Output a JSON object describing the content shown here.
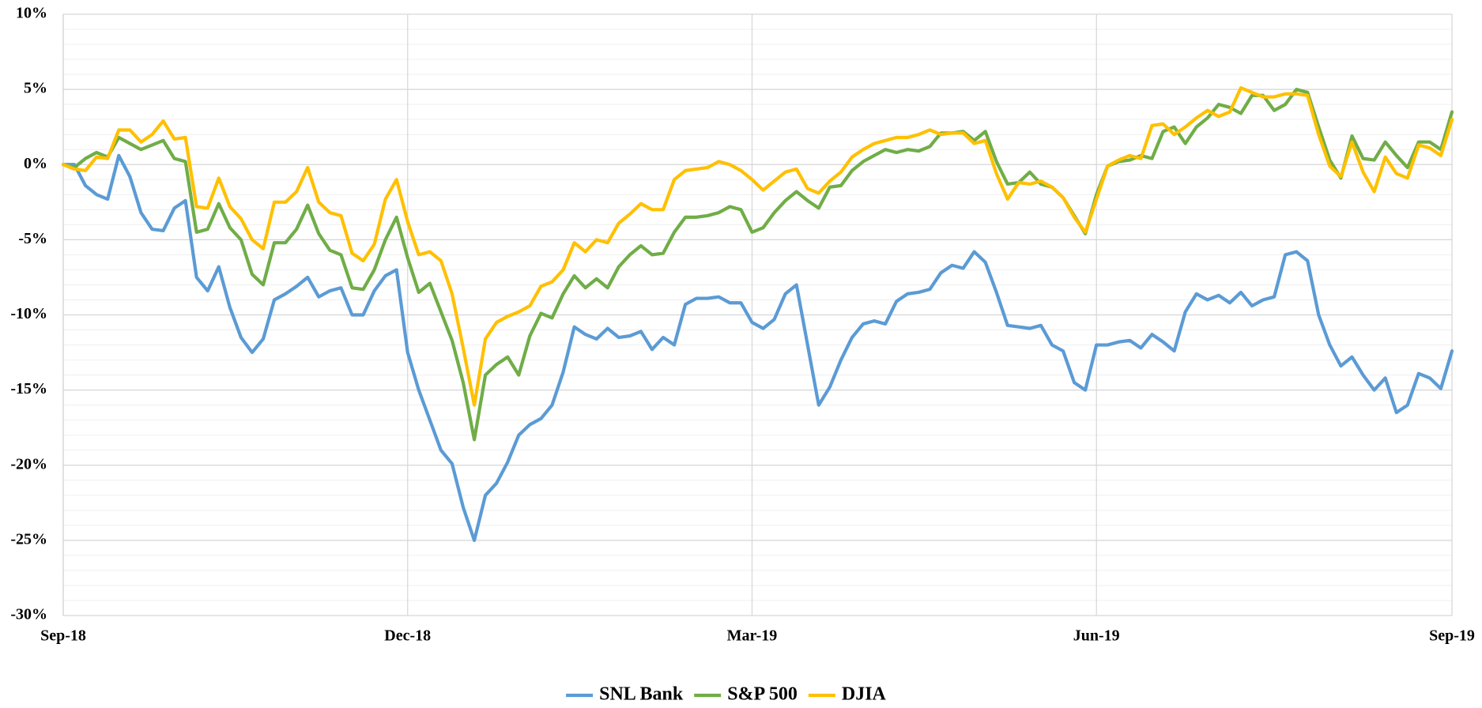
{
  "chart_data": {
    "type": "line",
    "categories": [
      "Sep-18",
      null,
      null,
      null,
      null,
      null,
      null,
      null,
      null,
      null,
      null,
      null,
      null,
      null,
      null,
      null,
      null,
      null,
      null,
      null,
      null,
      null,
      null,
      null,
      null,
      null,
      null,
      null,
      null,
      null,
      null,
      "Dec-18",
      null,
      null,
      null,
      null,
      null,
      null,
      null,
      null,
      null,
      null,
      null,
      null,
      null,
      null,
      null,
      null,
      null,
      null,
      null,
      null,
      null,
      null,
      null,
      null,
      null,
      null,
      null,
      null,
      null,
      null,
      "Mar-19",
      null,
      null,
      null,
      null,
      null,
      null,
      null,
      null,
      null,
      null,
      null,
      null,
      null,
      null,
      null,
      null,
      null,
      null,
      null,
      null,
      null,
      null,
      null,
      null,
      null,
      null,
      null,
      null,
      null,
      null,
      "Jun-19",
      null,
      null,
      null,
      null,
      null,
      null,
      null,
      null,
      null,
      null,
      null,
      null,
      null,
      null,
      null,
      null,
      null,
      null,
      null,
      null,
      null,
      null,
      null,
      null,
      null,
      null,
      null,
      null,
      null,
      null,
      null,
      "Sep-19"
    ],
    "series": [
      {
        "name": "SNL Bank",
        "color": "#5b9bd5",
        "values": [
          0,
          0,
          -1.4,
          -2.0,
          -2.3,
          0.6,
          -0.8,
          -3.2,
          -4.3,
          -4.4,
          -2.9,
          -2.4,
          -7.5,
          -8.4,
          -6.8,
          -9.5,
          -11.5,
          -12.5,
          -11.6,
          -9,
          -8.6,
          -8.1,
          -7.5,
          -8.8,
          -8.4,
          -8.2,
          -10,
          -10,
          -8.4,
          -7.4,
          -7,
          -12.5,
          -15,
          -17,
          -19,
          -19.9,
          -22.8,
          -25,
          -22,
          -21.2,
          -19.8,
          -18,
          -17.3,
          -16.9,
          -16,
          -13.8,
          -10.8,
          -11.3,
          -11.6,
          -10.9,
          -11.5,
          -11.4,
          -11.1,
          -12.3,
          -11.5,
          -12,
          -9.3,
          -8.9,
          -8.9,
          -8.8,
          -9.2,
          -9.2,
          -10.5,
          -10.9,
          -10.3,
          -8.6,
          -8.0,
          -12,
          -16,
          -14.8,
          -13,
          -11.5,
          -10.6,
          -10.4,
          -10.6,
          -9.1,
          -8.6,
          -8.5,
          -8.3,
          -7.2,
          -6.7,
          -6.9,
          -5.8,
          -6.5,
          -8.5,
          -10.7,
          -10.8,
          -10.9,
          -10.7,
          -12,
          -12.4,
          -14.5,
          -15,
          -12,
          -12,
          -11.8,
          -11.7,
          -12.2,
          -11.3,
          -11.8,
          -12.4,
          -9.8,
          -8.6,
          -9,
          -8.7,
          -9.2,
          -8.5,
          -9.4,
          -9,
          -8.8,
          -6,
          -5.8,
          -6.4,
          -10,
          -12,
          -13.4,
          -12.8,
          -14,
          -15,
          -14.2,
          -16.5,
          -16,
          -13.9,
          -14.2,
          -14.9,
          -12.4
        ]
      },
      {
        "name": "S&P 500",
        "color": "#70ad47",
        "values": [
          0,
          -0.2,
          0.4,
          0.8,
          0.5,
          1.8,
          1.4,
          1.0,
          1.3,
          1.6,
          0.4,
          0.2,
          -4.5,
          -4.3,
          -2.6,
          -4.2,
          -5,
          -7.3,
          -8,
          -5.2,
          -5.2,
          -4.3,
          -2.7,
          -4.6,
          -5.7,
          -6,
          -8.2,
          -8.3,
          -7,
          -5,
          -3.5,
          -6.2,
          -8.5,
          -7.9,
          -9.8,
          -11.7,
          -14.5,
          -18.3,
          -14,
          -13.3,
          -12.8,
          -14,
          -11.4,
          -9.9,
          -10.2,
          -8.6,
          -7.4,
          -8.2,
          -7.6,
          -8.2,
          -6.8,
          -6,
          -5.4,
          -6,
          -5.9,
          -4.5,
          -3.5,
          -3.5,
          -3.4,
          -3.2,
          -2.8,
          -3,
          -4.5,
          -4.2,
          -3.2,
          -2.4,
          -1.8,
          -2.4,
          -2.9,
          -1.5,
          -1.4,
          -0.4,
          0.2,
          0.6,
          1,
          0.8,
          1,
          0.9,
          1.2,
          2.1,
          2.1,
          2.2,
          1.6,
          2.2,
          0.2,
          -1.3,
          -1.2,
          -0.5,
          -1.3,
          -1.5,
          -2.2,
          -3.4,
          -4.6,
          -2,
          -0.1,
          0.2,
          0.3,
          0.6,
          0.4,
          2.2,
          2.5,
          1.4,
          2.5,
          3.1,
          4,
          3.8,
          3.4,
          4.6,
          4.6,
          3.6,
          4,
          5,
          4.8,
          2.5,
          0.3,
          -0.9,
          1.9,
          0.4,
          0.3,
          1.5,
          0.6,
          -0.2,
          1.5,
          1.5,
          1,
          3.5
        ]
      },
      {
        "name": "DJIA",
        "color": "#ffc000",
        "values": [
          0,
          -0.3,
          -0.4,
          0.5,
          0.4,
          2.3,
          2.3,
          1.5,
          2,
          2.9,
          1.7,
          1.8,
          -2.8,
          -2.9,
          -0.9,
          -2.8,
          -3.6,
          -5,
          -5.6,
          -2.5,
          -2.5,
          -1.8,
          -0.2,
          -2.5,
          -3.2,
          -3.4,
          -5.9,
          -6.4,
          -5.3,
          -2.3,
          -1,
          -3.8,
          -6,
          -5.8,
          -6.4,
          -8.6,
          -12.2,
          -16,
          -11.6,
          -10.5,
          -10.1,
          -9.8,
          -9.4,
          -8.1,
          -7.8,
          -7,
          -5.2,
          -5.8,
          -5,
          -5.2,
          -3.9,
          -3.3,
          -2.6,
          -3,
          -3,
          -1,
          -0.4,
          -0.3,
          -0.2,
          0.2,
          0,
          -0.4,
          -1,
          -1.7,
          -1.1,
          -0.5,
          -0.3,
          -1.6,
          -1.9,
          -1.1,
          -0.5,
          0.5,
          1,
          1.4,
          1.6,
          1.8,
          1.8,
          2,
          2.3,
          2,
          2.1,
          2.1,
          1.4,
          1.6,
          -0.6,
          -2.3,
          -1.2,
          -1.3,
          -1.1,
          -1.5,
          -2.2,
          -3.5,
          -4.5,
          -2.3,
          -0.1,
          0.3,
          0.6,
          0.4,
          2.6,
          2.7,
          2,
          2.5,
          3.1,
          3.6,
          3.2,
          3.5,
          5.1,
          4.8,
          4.5,
          4.5,
          4.7,
          4.7,
          4.6,
          2,
          -0.1,
          -0.8,
          1.5,
          -0.5,
          -1.8,
          0.5,
          -0.6,
          -0.9,
          1.3,
          1.1,
          0.6,
          3
        ]
      }
    ],
    "ylim": [
      -30,
      10
    ],
    "yticks": [
      {
        "value": -30,
        "label": "-30%"
      },
      {
        "value": -25,
        "label": "-25%"
      },
      {
        "value": -20,
        "label": "-20%"
      },
      {
        "value": -15,
        "label": "-15%"
      },
      {
        "value": -10,
        "label": "-10%"
      },
      {
        "value": -5,
        "label": "-5%"
      },
      {
        "value": 0,
        "label": "0%"
      },
      {
        "value": 5,
        "label": "5%"
      },
      {
        "value": 10,
        "label": "10%"
      }
    ],
    "yminorticks": [
      -29,
      -28,
      -27,
      -26,
      -24,
      -23,
      -22,
      -21,
      -19,
      -18,
      -17,
      -16,
      -14,
      -13,
      -12,
      -11,
      -9,
      -8,
      -7,
      -6,
      -4,
      -3,
      -2,
      -1,
      1,
      2,
      3,
      4,
      6,
      7,
      8,
      9
    ],
    "grid": true,
    "legend": "bottom"
  }
}
